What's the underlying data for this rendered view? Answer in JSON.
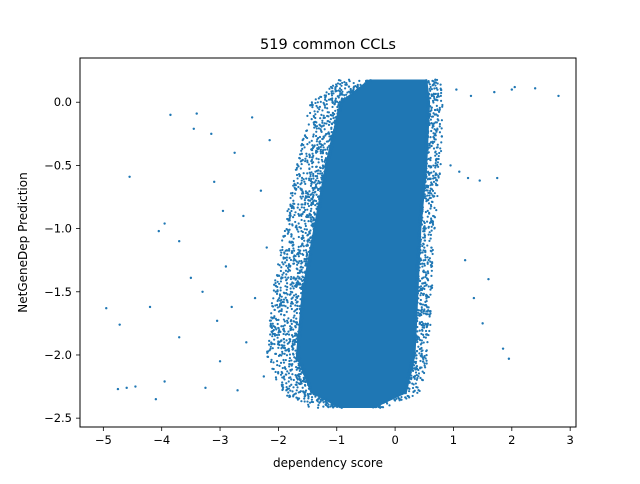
{
  "chart_data": {
    "type": "scatter",
    "title": "519 common CCLs",
    "xlabel": "dependency score",
    "ylabel": "NetGeneDep Prediction",
    "xlim": [
      -5.4,
      3.1
    ],
    "ylim": [
      -2.57,
      0.35
    ],
    "xticks": [
      -5,
      -4,
      -3,
      -2,
      -1,
      0,
      1,
      2,
      3
    ],
    "xtick_labels": [
      "−5",
      "−4",
      "−3",
      "−2",
      "−1",
      "0",
      "1",
      "2",
      "3"
    ],
    "yticks": [
      0.0,
      -0.5,
      -1.0,
      -1.5,
      -2.0,
      -2.5
    ],
    "ytick_labels": [
      "0.0",
      "−0.5",
      "−1.0",
      "−1.5",
      "−2.0",
      "−2.5"
    ],
    "grid": false,
    "legend": "none",
    "marker_color": "#1f77b4",
    "dense_region": {
      "description_points": [
        {
          "y": 0.18,
          "x_min": -0.8,
          "x_max": 0.7
        },
        {
          "y": 0.0,
          "x_min": -1.3,
          "x_max": 0.75
        },
        {
          "y": -0.5,
          "x_min": -1.55,
          "x_max": 0.7
        },
        {
          "y": -1.0,
          "x_min": -1.75,
          "x_max": 0.6
        },
        {
          "y": -1.5,
          "x_min": -1.95,
          "x_max": 0.55
        },
        {
          "y": -2.0,
          "x_min": -2.05,
          "x_max": 0.5
        },
        {
          "y": -2.3,
          "x_min": -1.8,
          "x_max": 0.35
        },
        {
          "y": -2.42,
          "x_min": -1.3,
          "x_max": -0.2
        }
      ]
    },
    "outliers": [
      {
        "x": -4.95,
        "y": -1.63
      },
      {
        "x": -4.75,
        "y": -2.27
      },
      {
        "x": -4.72,
        "y": -1.76
      },
      {
        "x": -4.6,
        "y": -2.26
      },
      {
        "x": -4.55,
        "y": -0.59
      },
      {
        "x": -4.45,
        "y": -2.25
      },
      {
        "x": -4.2,
        "y": -1.62
      },
      {
        "x": -4.1,
        "y": -2.35
      },
      {
        "x": -4.05,
        "y": -1.02
      },
      {
        "x": -3.95,
        "y": -0.96
      },
      {
        "x": -3.95,
        "y": -2.21
      },
      {
        "x": -3.85,
        "y": -0.1
      },
      {
        "x": -3.7,
        "y": -1.1
      },
      {
        "x": -3.7,
        "y": -1.86
      },
      {
        "x": -3.5,
        "y": -1.39
      },
      {
        "x": -3.45,
        "y": -0.21
      },
      {
        "x": -3.4,
        "y": -0.09
      },
      {
        "x": -3.3,
        "y": -1.5
      },
      {
        "x": -3.25,
        "y": -2.26
      },
      {
        "x": -3.15,
        "y": -0.25
      },
      {
        "x": -3.1,
        "y": -0.63
      },
      {
        "x": -3.05,
        "y": -1.73
      },
      {
        "x": -3.0,
        "y": -2.05
      },
      {
        "x": -2.95,
        "y": -0.86
      },
      {
        "x": -2.9,
        "y": -1.3
      },
      {
        "x": -2.8,
        "y": -1.62
      },
      {
        "x": -2.75,
        "y": -0.4
      },
      {
        "x": -2.7,
        "y": -2.28
      },
      {
        "x": -2.6,
        "y": -0.9
      },
      {
        "x": -2.55,
        "y": -1.9
      },
      {
        "x": -2.45,
        "y": -0.12
      },
      {
        "x": -2.4,
        "y": -1.55
      },
      {
        "x": -2.3,
        "y": -0.7
      },
      {
        "x": -2.25,
        "y": -2.17
      },
      {
        "x": -2.2,
        "y": -1.15
      },
      {
        "x": -2.15,
        "y": -0.3
      },
      {
        "x": 0.95,
        "y": -0.5
      },
      {
        "x": 1.05,
        "y": 0.1
      },
      {
        "x": 1.1,
        "y": -0.55
      },
      {
        "x": 1.2,
        "y": -1.25
      },
      {
        "x": 1.25,
        "y": -0.6
      },
      {
        "x": 1.3,
        "y": 0.05
      },
      {
        "x": 1.35,
        "y": -1.55
      },
      {
        "x": 1.45,
        "y": -0.62
      },
      {
        "x": 1.5,
        "y": -1.75
      },
      {
        "x": 1.6,
        "y": -1.4
      },
      {
        "x": 1.7,
        "y": 0.08
      },
      {
        "x": 1.75,
        "y": -0.6
      },
      {
        "x": 1.85,
        "y": -1.95
      },
      {
        "x": 1.95,
        "y": -2.03
      },
      {
        "x": 2.0,
        "y": 0.1
      },
      {
        "x": 2.05,
        "y": 0.12
      },
      {
        "x": 2.4,
        "y": 0.11
      },
      {
        "x": 2.8,
        "y": 0.05
      }
    ]
  }
}
